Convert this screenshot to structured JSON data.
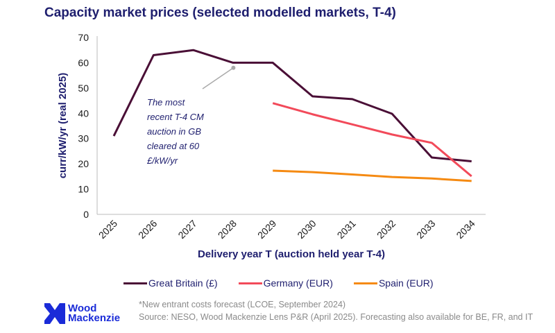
{
  "title": "Capacity market prices (selected modelled markets, T-4)",
  "chart_data": {
    "type": "line",
    "title": "Capacity market prices (selected modelled markets, T-4)",
    "xlabel": "Delivery year T (auction held year T-4)",
    "ylabel": "curr/kW/yr (real 2025)",
    "categories": [
      "2025",
      "2026",
      "2027",
      "2028",
      "2029",
      "2030",
      "2031",
      "2032",
      "2033",
      "2034"
    ],
    "ylim": [
      0,
      70
    ],
    "yticks": [
      0,
      10,
      20,
      30,
      40,
      50,
      60,
      70
    ],
    "grid": false,
    "legend_position": "bottom",
    "series": [
      {
        "name": "Great Britain (£)",
        "color": "#4a0f36",
        "values": [
          31,
          63,
          65,
          60,
          60,
          46.7,
          45.6,
          39.8,
          22.5,
          21
        ]
      },
      {
        "name": "Germany (EUR)",
        "color": "#f24a5a",
        "values": [
          null,
          null,
          null,
          null,
          44,
          39.6,
          35.6,
          31.6,
          28.3,
          15.1
        ]
      },
      {
        "name": "Spain (EUR)",
        "color": "#f58a12",
        "values": [
          null,
          null,
          null,
          null,
          17.3,
          16.7,
          15.8,
          14.8,
          14.2,
          13.2
        ]
      }
    ],
    "annotation": {
      "lines": [
        "The most",
        "recent T-4 CM",
        "auction in GB",
        "cleared at 60",
        "£/kW/yr"
      ],
      "x": "2028",
      "y": 58
    }
  },
  "footnote": "*New entrant costs forecast (LCOE, September 2024)",
  "source": "Source: NESO, Wood Mackenzie Lens P&R (April 2025). Forecasting also available for BE, FR, and IT",
  "logo": {
    "line1": "Wood",
    "line2": "Mackenzie"
  }
}
